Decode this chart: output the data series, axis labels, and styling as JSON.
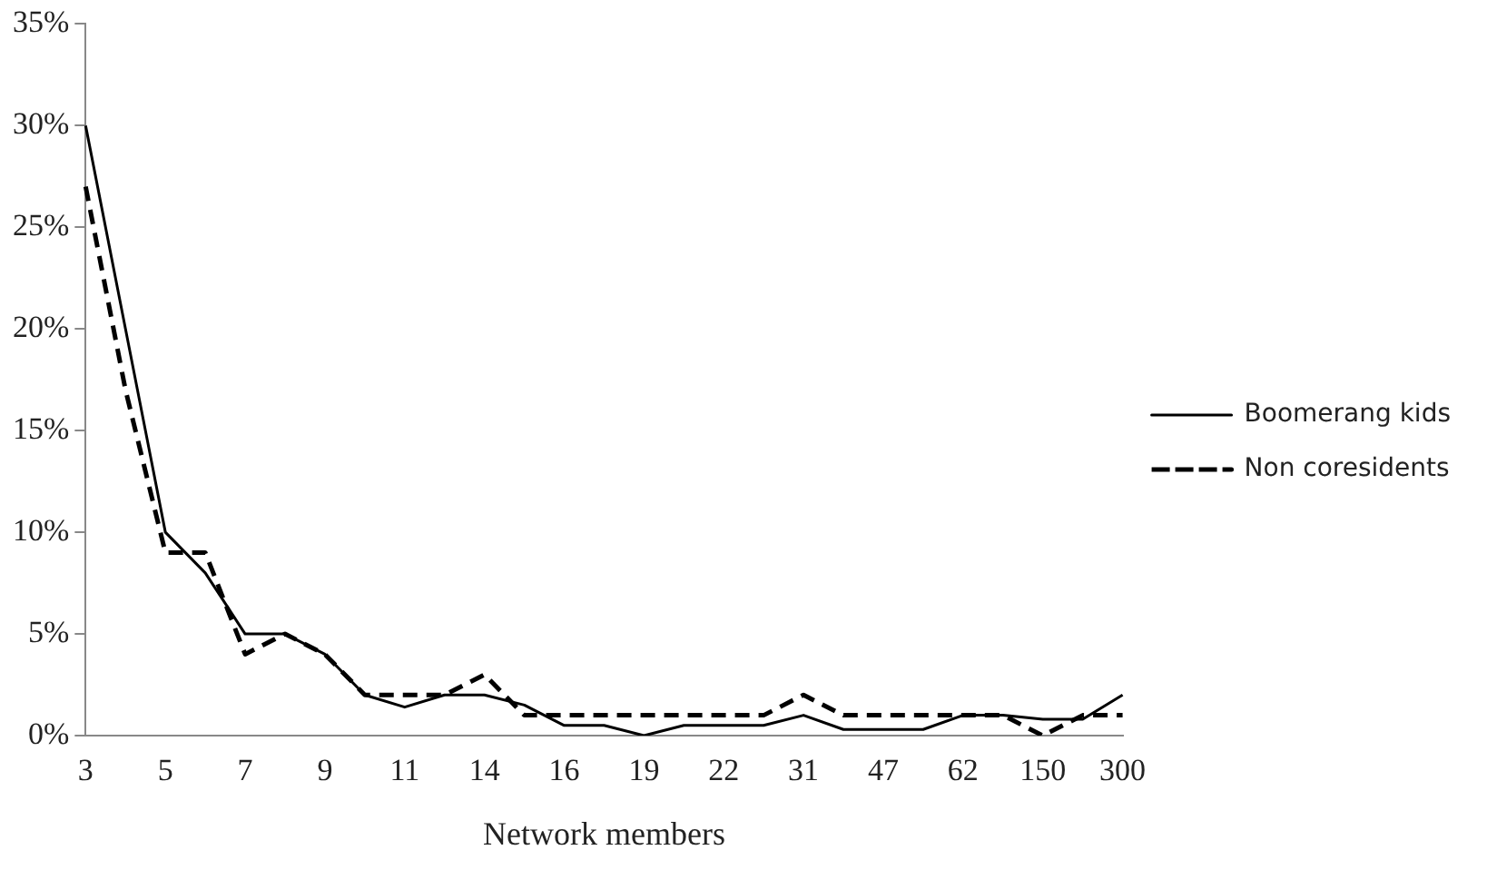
{
  "chart_data": {
    "type": "line",
    "xlabel": "Network members",
    "categories": [
      "3",
      null,
      "5",
      null,
      "7",
      null,
      "9",
      null,
      "11",
      null,
      "14",
      null,
      "16",
      null,
      "19",
      null,
      "22",
      null,
      "31",
      null,
      "47",
      null,
      "62",
      null,
      "150",
      null,
      "300"
    ],
    "series": [
      {
        "name": "Boomerang kids",
        "color": "#000000",
        "line_style": "solid",
        "values": [
          30,
          20,
          10,
          8,
          5,
          5,
          4,
          2,
          1.4,
          2,
          2,
          1.5,
          0.5,
          0.5,
          0,
          0.5,
          0.5,
          0.5,
          1,
          0.3,
          0.3,
          0.3,
          1,
          1,
          0.8,
          0.8,
          2
        ]
      },
      {
        "name": "Non coresidents",
        "color": "#000000",
        "line_style": "dashed",
        "values": [
          27,
          17,
          9,
          9,
          4,
          5,
          4,
          2,
          2,
          2,
          3,
          1,
          1,
          1,
          1,
          1,
          1,
          1,
          2,
          1,
          1,
          1,
          1,
          1,
          0,
          1,
          1
        ]
      }
    ],
    "ylim": [
      0,
      35
    ],
    "yticks": [
      {
        "value": 0,
        "label": "0%"
      },
      {
        "value": 5,
        "label": "5%"
      },
      {
        "value": 10,
        "label": "10%"
      },
      {
        "value": 15,
        "label": "15%"
      },
      {
        "value": 20,
        "label": "20%"
      },
      {
        "value": 25,
        "label": "25%"
      },
      {
        "value": 30,
        "label": "30%"
      },
      {
        "value": 35,
        "label": "35%"
      }
    ],
    "grid": false,
    "legend": "right",
    "marker": "none"
  }
}
